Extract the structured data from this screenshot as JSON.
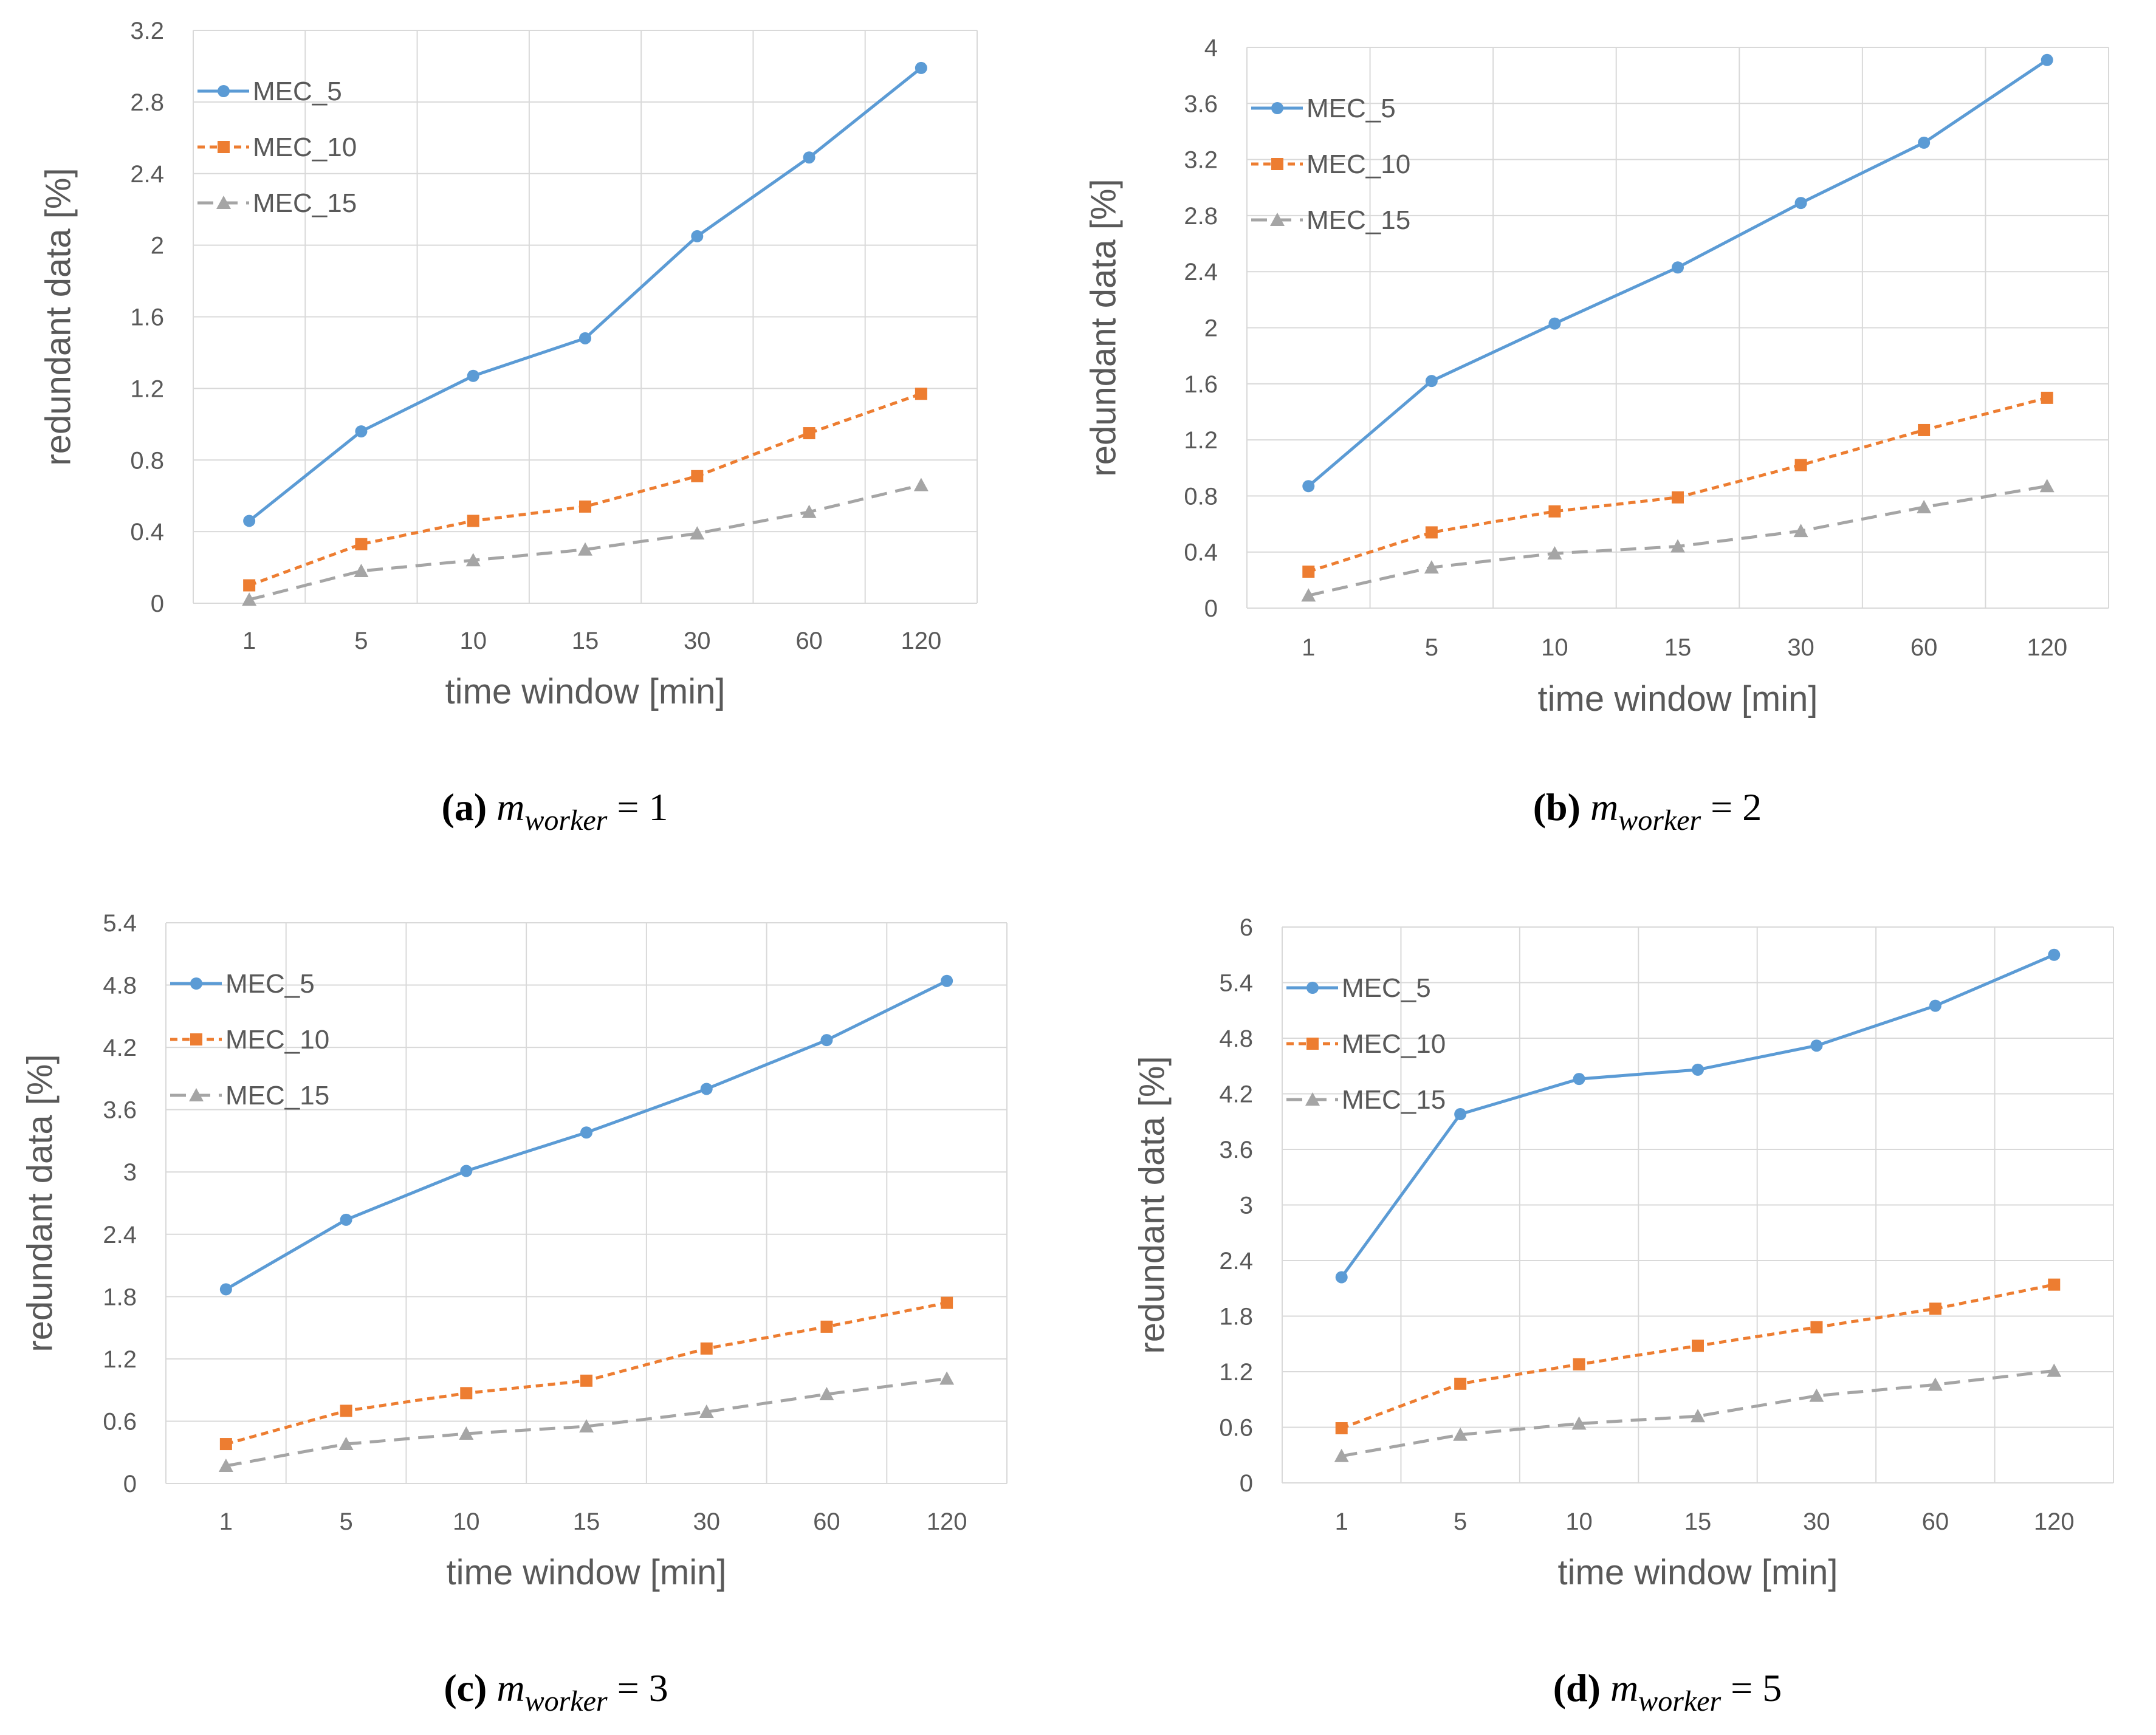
{
  "colors": {
    "series": [
      "#5b9bd5",
      "#ed7d31",
      "#a5a5a5"
    ],
    "grid": "#d9d9d9",
    "axis_text": "#595959"
  },
  "chart_data": [
    {
      "type": "line",
      "caption": {
        "letter": "(a)",
        "var": "m",
        "sub": "worker",
        "eq": " = 1"
      },
      "categories": [
        "1",
        "5",
        "10",
        "15",
        "30",
        "60",
        "120"
      ],
      "xlabel": "time window [min]",
      "ylabel": "redundant data [%]",
      "ylim": [
        0,
        3.2
      ],
      "yticks": [
        "0",
        "0.4",
        "0.8",
        "1.2",
        "1.6",
        "2",
        "2.4",
        "2.8",
        "3.2"
      ],
      "legend_position": "top-left",
      "series": [
        {
          "name": "MEC_5",
          "marker": "circle",
          "dash": "solid",
          "values": [
            0.46,
            0.96,
            1.27,
            1.48,
            2.05,
            2.49,
            2.99
          ]
        },
        {
          "name": "MEC_10",
          "marker": "square",
          "dash": "dotted",
          "values": [
            0.1,
            0.33,
            0.46,
            0.54,
            0.71,
            0.95,
            1.17
          ]
        },
        {
          "name": "MEC_15",
          "marker": "triangle",
          "dash": "dashed",
          "values": [
            0.02,
            0.18,
            0.24,
            0.3,
            0.39,
            0.51,
            0.66
          ]
        }
      ]
    },
    {
      "type": "line",
      "caption": {
        "letter": "(b)",
        "var": "m",
        "sub": "worker",
        "eq": " = 2"
      },
      "categories": [
        "1",
        "5",
        "10",
        "15",
        "30",
        "60",
        "120"
      ],
      "xlabel": "time window [min]",
      "ylabel": "redundant data [%]",
      "ylim": [
        0,
        4
      ],
      "yticks": [
        "0",
        "0.4",
        "0.8",
        "1.2",
        "1.6",
        "2",
        "2.4",
        "2.8",
        "3.2",
        "3.6",
        "4"
      ],
      "legend_position": "top-left",
      "series": [
        {
          "name": "MEC_5",
          "marker": "circle",
          "dash": "solid",
          "values": [
            0.87,
            1.62,
            2.03,
            2.43,
            2.89,
            3.32,
            3.91
          ]
        },
        {
          "name": "MEC_10",
          "marker": "square",
          "dash": "dotted",
          "values": [
            0.26,
            0.54,
            0.69,
            0.79,
            1.02,
            1.27,
            1.5
          ]
        },
        {
          "name": "MEC_15",
          "marker": "triangle",
          "dash": "dashed",
          "values": [
            0.09,
            0.29,
            0.39,
            0.44,
            0.55,
            0.72,
            0.87
          ]
        }
      ]
    },
    {
      "type": "line",
      "caption": {
        "letter": "(c)",
        "var": "m",
        "sub": "worker",
        "eq": " = 3"
      },
      "categories": [
        "1",
        "5",
        "10",
        "15",
        "30",
        "60",
        "120"
      ],
      "xlabel": "time window [min]",
      "ylabel": "redundant data [%]",
      "ylim": [
        0,
        5.4
      ],
      "yticks": [
        "0",
        "0.6",
        "1.2",
        "1.8",
        "2.4",
        "3",
        "3.6",
        "4.2",
        "4.8",
        "5.4"
      ],
      "legend_position": "top-left",
      "series": [
        {
          "name": "MEC_5",
          "marker": "circle",
          "dash": "solid",
          "values": [
            1.87,
            2.54,
            3.01,
            3.38,
            3.8,
            4.27,
            4.84
          ]
        },
        {
          "name": "MEC_10",
          "marker": "square",
          "dash": "dotted",
          "values": [
            0.38,
            0.7,
            0.87,
            0.99,
            1.3,
            1.51,
            1.74
          ]
        },
        {
          "name": "MEC_15",
          "marker": "triangle",
          "dash": "dashed",
          "values": [
            0.17,
            0.38,
            0.48,
            0.55,
            0.69,
            0.86,
            1.01
          ]
        }
      ]
    },
    {
      "type": "line",
      "caption": {
        "letter": "(d)",
        "var": "m",
        "sub": "worker",
        "eq": " = 5"
      },
      "categories": [
        "1",
        "5",
        "10",
        "15",
        "30",
        "60",
        "120"
      ],
      "xlabel": "time window [min]",
      "ylabel": "redundant data [%]",
      "ylim": [
        0,
        6
      ],
      "yticks": [
        "0",
        "0.6",
        "1.2",
        "1.8",
        "2.4",
        "3",
        "3.6",
        "4.2",
        "4.8",
        "5.4",
        "6"
      ],
      "legend_position": "top-left",
      "series": [
        {
          "name": "MEC_5",
          "marker": "circle",
          "dash": "solid",
          "values": [
            2.22,
            3.98,
            4.36,
            4.46,
            4.72,
            5.15,
            5.7
          ]
        },
        {
          "name": "MEC_10",
          "marker": "square",
          "dash": "dotted",
          "values": [
            0.59,
            1.07,
            1.28,
            1.48,
            1.68,
            1.88,
            2.14
          ]
        },
        {
          "name": "MEC_15",
          "marker": "triangle",
          "dash": "dashed",
          "values": [
            0.29,
            0.52,
            0.64,
            0.72,
            0.94,
            1.06,
            1.21
          ]
        }
      ]
    }
  ]
}
